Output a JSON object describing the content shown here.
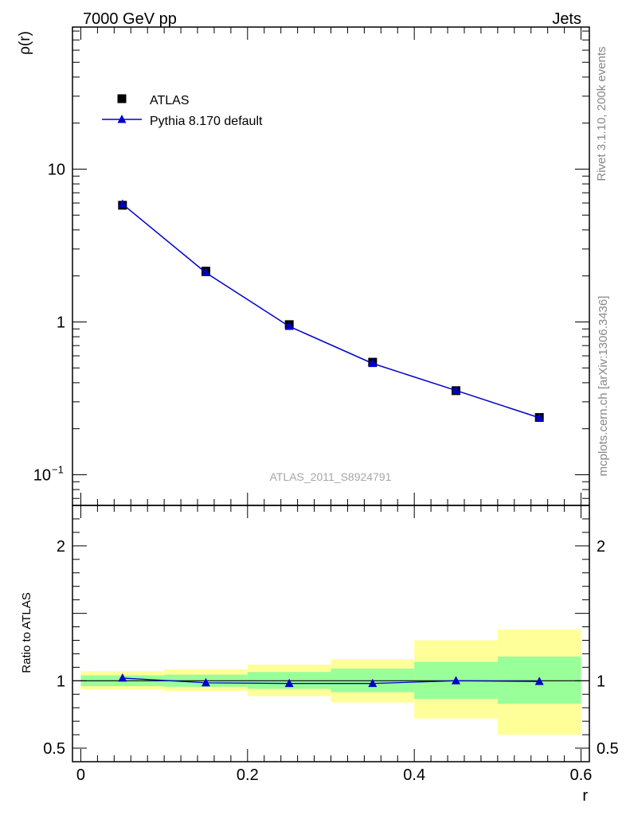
{
  "header": {
    "left_title": "7000 GeV pp",
    "right_title": "Jets"
  },
  "side_labels": {
    "rivet": "Rivet 3.1.10,  200k events",
    "mcplots": "mcplots.cern.ch [arXiv:1306.3436]"
  },
  "chart_data": [
    {
      "type": "scatter",
      "panel": "main",
      "ylabel": "ρ(r)",
      "yscale": "log",
      "ylim": [
        0.063,
        85
      ],
      "xlim": [
        -0.01,
        0.61
      ],
      "y_ticks": [
        {
          "value": 0.1,
          "label": "10",
          "sup": "−1"
        },
        {
          "value": 1,
          "label": "1",
          "sup": ""
        },
        {
          "value": 10,
          "label": "10",
          "sup": ""
        }
      ],
      "watermark": "ATLAS_2011_S8924791",
      "legend": {
        "placement": "top-left",
        "data_label": "ATLAS",
        "mc_label": "Pythia 8.170 default"
      },
      "series": [
        {
          "name": "ATLAS",
          "marker": "square",
          "color": "#000000",
          "x": [
            0.05,
            0.15,
            0.25,
            0.35,
            0.45,
            0.55
          ],
          "y": [
            5.8,
            2.15,
            0.96,
            0.545,
            0.355,
            0.237
          ]
        },
        {
          "name": "Pythia 8.170 default",
          "marker": "triangle",
          "color": "#0000cc",
          "x": [
            0.05,
            0.15,
            0.25,
            0.35,
            0.45,
            0.55
          ],
          "y": [
            5.9,
            2.1,
            0.935,
            0.535,
            0.356,
            0.236
          ]
        }
      ]
    },
    {
      "type": "line",
      "panel": "ratio",
      "ylabel": "Ratio to ATLAS",
      "xlabel": "r",
      "ylim": [
        0.4,
        2.3
      ],
      "xlim": [
        -0.01,
        0.61
      ],
      "y_ticks": [
        {
          "value": 0.5,
          "label": "0.5"
        },
        {
          "value": 1,
          "label": "1"
        },
        {
          "value": 2,
          "label": "2"
        }
      ],
      "x_ticks": [
        {
          "value": 0,
          "label": "0"
        },
        {
          "value": 0.2,
          "label": "0.2"
        },
        {
          "value": 0.4,
          "label": "0.4"
        },
        {
          "value": 0.6,
          "label": "0.6"
        }
      ],
      "bands": {
        "bins": [
          [
            0.0,
            0.1
          ],
          [
            0.1,
            0.2
          ],
          [
            0.2,
            0.3
          ],
          [
            0.3,
            0.4
          ],
          [
            0.4,
            0.5
          ],
          [
            0.5,
            0.6
          ]
        ],
        "yellow": [
          [
            0.935,
            1.07
          ],
          [
            0.925,
            1.085
          ],
          [
            0.885,
            1.12
          ],
          [
            0.84,
            1.16
          ],
          [
            0.72,
            1.3
          ],
          [
            0.6,
            1.38
          ]
        ],
        "green": [
          [
            0.96,
            1.04
          ],
          [
            0.955,
            1.045
          ],
          [
            0.94,
            1.065
          ],
          [
            0.915,
            1.09
          ],
          [
            0.865,
            1.14
          ],
          [
            0.83,
            1.18
          ]
        ]
      },
      "series": [
        {
          "name": "Pythia 8.170 default / ATLAS",
          "color": "#0000cc",
          "x": [
            0.05,
            0.15,
            0.25,
            0.35,
            0.45,
            0.55
          ],
          "y": [
            1.02,
            0.985,
            0.98,
            0.98,
            1.0,
            0.995
          ]
        }
      ]
    }
  ]
}
